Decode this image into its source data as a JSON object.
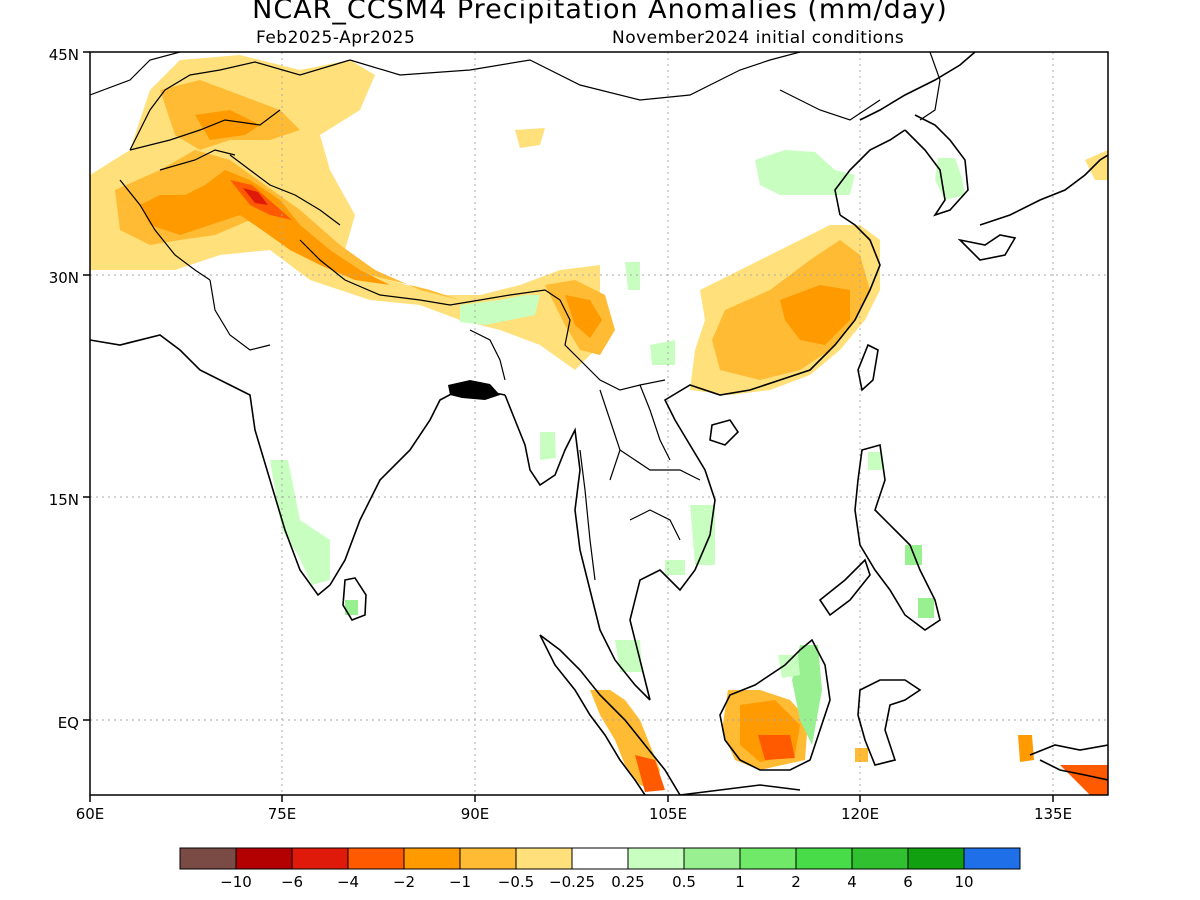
{
  "header": {
    "title": "NCAR_CCSM4 Precipitation Anomalies (mm/day)",
    "period": "Feb2025-Apr2025",
    "init": "November2024 initial conditions"
  },
  "axes": {
    "lon_ticks": [
      "60E",
      "75E",
      "90E",
      "105E",
      "120E",
      "135E"
    ],
    "lat_ticks": [
      "45N",
      "30N",
      "15N",
      "EQ"
    ]
  },
  "legend": {
    "labels": [
      "-10",
      "-6",
      "-4",
      "-2",
      "-1",
      "-0.5",
      "-0.25",
      "0.25",
      "0.5",
      "1",
      "2",
      "4",
      "6",
      "10"
    ],
    "colors": [
      "#7a4a44",
      "#b30000",
      "#e01a0a",
      "#ff5a00",
      "#ff9a00",
      "#ffbb33",
      "#ffe07a",
      "#ffffff",
      "#c8ffc0",
      "#98f090",
      "#70e868",
      "#48dd48",
      "#30c030",
      "#10a010",
      "#1e6fe8"
    ]
  },
  "chart_data": {
    "type": "heatmap",
    "title": "NCAR_CCSM4 Precipitation Anomalies (mm/day)",
    "subtitle": "Feb2025-Apr2025 / November2024 initial conditions",
    "xlim": [
      60,
      140
    ],
    "ylim": [
      -5,
      45
    ],
    "units": "mm/day",
    "grid": true,
    "levels": [
      -10,
      -6,
      -4,
      -2,
      -1,
      -0.5,
      -0.25,
      0.25,
      0.5,
      1,
      2,
      4,
      6,
      10
    ]
  }
}
